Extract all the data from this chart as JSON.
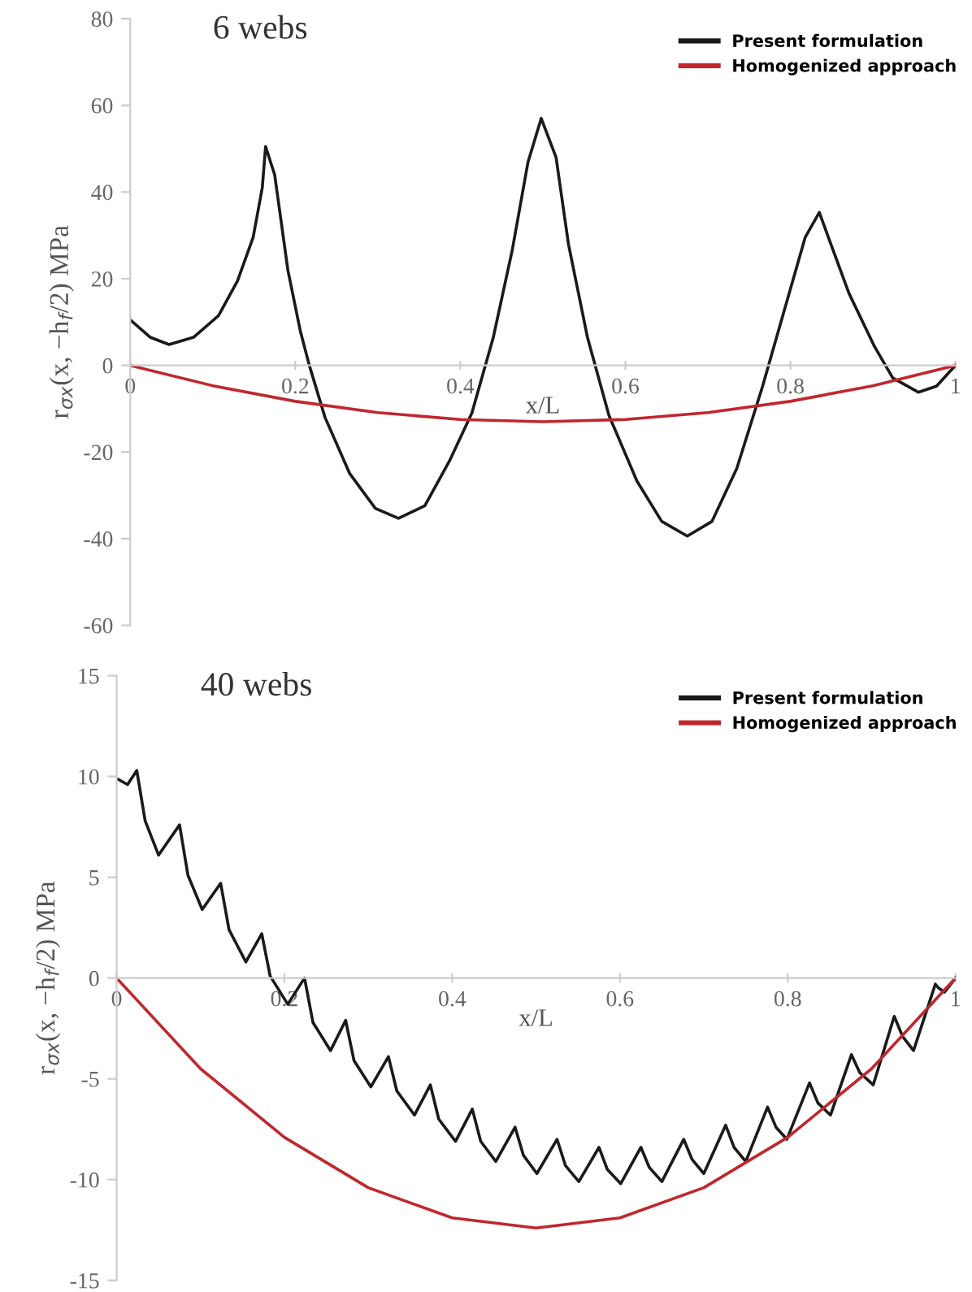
{
  "chart_data": [
    {
      "type": "line",
      "title": "6 webs",
      "xlabel": "x/L",
      "ylabel": "r$_{σx}$(x, −h$_{f}$/2) MPa",
      "xlim": [
        0,
        1
      ],
      "ylim": [
        -60,
        80
      ],
      "xticks": [
        0,
        0.2,
        0.4,
        0.6,
        0.8,
        1
      ],
      "yticks": [
        -60,
        -40,
        -20,
        0,
        20,
        40,
        60,
        80
      ],
      "legend": "top right",
      "grid": false,
      "marker": "none",
      "line_style": "solid",
      "series": [
        {
          "name": "Present formulation",
          "color": "#1a1a1a",
          "x": [
            0,
            0.024,
            0.047,
            0.077,
            0.107,
            0.13,
            0.149,
            0.16,
            0.164,
            0.175,
            0.191,
            0.206,
            0.217,
            0.236,
            0.266,
            0.297,
            0.325,
            0.357,
            0.387,
            0.414,
            0.44,
            0.463,
            0.482,
            0.498,
            0.516,
            0.531,
            0.554,
            0.58,
            0.614,
            0.644,
            0.675,
            0.705,
            0.735,
            0.766,
            0.796,
            0.818,
            0.835,
            0.849,
            0.871,
            0.902,
            0.924,
            0.955,
            0.977,
            1
          ],
          "values": [
            10.5,
            6.5,
            4.8,
            6.5,
            11.5,
            19.5,
            29.6,
            41,
            50.5,
            44,
            22,
            8,
            0,
            -12,
            -25,
            -33,
            -35.3,
            -32.4,
            -22,
            -11,
            6.5,
            26.7,
            46.9,
            57,
            48,
            28,
            6.5,
            -11.5,
            -26.7,
            -36,
            -39.4,
            -36,
            -23.8,
            -5,
            15,
            29.6,
            35.3,
            28,
            16.6,
            4.3,
            -2.9,
            -6.2,
            -4.8,
            0
          ]
        },
        {
          "name": "Homogenized approach",
          "color": "#c0272d",
          "x": [
            0,
            0.1,
            0.2,
            0.3,
            0.4,
            0.5,
            0.6,
            0.7,
            0.8,
            0.9,
            1
          ],
          "values": [
            0,
            -4.7,
            -8.3,
            -10.9,
            -12.5,
            -13,
            -12.5,
            -10.9,
            -8.3,
            -4.7,
            0
          ]
        }
      ]
    },
    {
      "type": "line",
      "title": "40 webs",
      "xlabel": "x/L",
      "ylabel": "r$_{σx}$(x, −h$_{f}$/2) MPa",
      "xlim": [
        0,
        1
      ],
      "ylim": [
        -15,
        15
      ],
      "xticks": [
        0,
        0.2,
        0.4,
        0.6,
        0.8,
        1
      ],
      "yticks": [
        -15,
        -10,
        -5,
        0,
        5,
        10,
        15
      ],
      "legend": "top right",
      "grid": false,
      "marker": "none",
      "line_style": "solid",
      "series": [
        {
          "name": "Present formulation",
          "color": "#1a1a1a",
          "x": [
            0,
            0.013,
            0.024,
            0.034,
            0.05,
            0.075,
            0.085,
            0.102,
            0.124,
            0.134,
            0.154,
            0.173,
            0.183,
            0.204,
            0.224,
            0.234,
            0.255,
            0.273,
            0.283,
            0.303,
            0.324,
            0.334,
            0.355,
            0.374,
            0.384,
            0.404,
            0.424,
            0.434,
            0.452,
            0.475,
            0.485,
            0.501,
            0.525,
            0.535,
            0.551,
            0.575,
            0.585,
            0.601,
            0.625,
            0.635,
            0.65,
            0.676,
            0.686,
            0.7,
            0.726,
            0.736,
            0.75,
            0.776,
            0.786,
            0.799,
            0.826,
            0.836,
            0.851,
            0.876,
            0.886,
            0.902,
            0.927,
            0.937,
            0.95,
            0.976,
            0.98,
            0.987,
            1
          ],
          "values": [
            9.9,
            9.6,
            10.3,
            7.8,
            6.1,
            7.6,
            5.1,
            3.4,
            4.7,
            2.4,
            0.8,
            2.2,
            0.1,
            -1.3,
            0,
            -2.2,
            -3.6,
            -2.1,
            -4.1,
            -5.4,
            -3.9,
            -5.6,
            -6.8,
            -5.3,
            -7.0,
            -8.1,
            -6.5,
            -8.1,
            -9.1,
            -7.4,
            -8.8,
            -9.7,
            -8.0,
            -9.3,
            -10.1,
            -8.4,
            -9.5,
            -10.2,
            -8.4,
            -9.4,
            -10.1,
            -8.0,
            -9.0,
            -9.7,
            -7.3,
            -8.4,
            -9.1,
            -6.4,
            -7.4,
            -8.0,
            -5.2,
            -6.2,
            -6.8,
            -3.8,
            -4.7,
            -5.3,
            -1.9,
            -2.9,
            -3.6,
            -0.3,
            -0.5,
            -0.7,
            0
          ]
        },
        {
          "name": "Homogenized approach",
          "color": "#c0272d",
          "x": [
            0,
            0.1,
            0.2,
            0.3,
            0.4,
            0.5,
            0.6,
            0.7,
            0.8,
            0.9,
            1
          ],
          "values": [
            0,
            -4.5,
            -7.9,
            -10.4,
            -11.9,
            -12.4,
            -11.9,
            -10.4,
            -7.9,
            -4.5,
            0
          ]
        }
      ]
    }
  ]
}
